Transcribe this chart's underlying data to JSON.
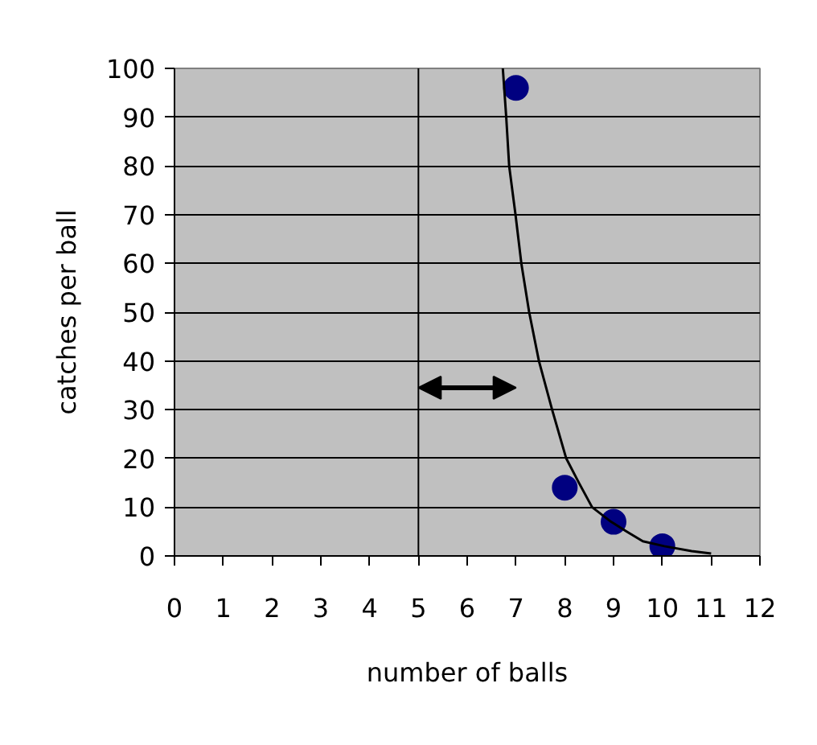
{
  "chart_data": {
    "type": "scatter",
    "xlabel": "number of balls",
    "ylabel": "catches per ball",
    "xlim": [
      0,
      12
    ],
    "ylim": [
      0,
      100
    ],
    "xticks": [
      0,
      1,
      2,
      3,
      4,
      5,
      6,
      7,
      8,
      9,
      10,
      11,
      12
    ],
    "yticks": [
      0,
      10,
      20,
      30,
      40,
      50,
      60,
      70,
      80,
      90,
      100
    ],
    "grid": "y",
    "marker": "circle",
    "series": [
      {
        "color": "#000080",
        "x": [
          7,
          8,
          9,
          10
        ],
        "values": [
          96,
          14,
          7,
          2
        ]
      },
      {
        "type": "line",
        "color": "#000000",
        "marker": "none",
        "line_style": "solid",
        "x": [
          6.73,
          6.8,
          6.86,
          6.99,
          7.11,
          7.27,
          7.47,
          7.74,
          8.03,
          8.29,
          8.56,
          8.95,
          9.27,
          9.6,
          10.04,
          10.6,
          11.0
        ],
        "values": [
          100,
          90,
          80,
          70,
          60,
          50,
          40,
          30,
          20,
          15,
          10,
          7,
          5,
          3,
          2,
          1,
          0.5
        ]
      }
    ],
    "ref_lines": [
      {
        "axis": "x",
        "value": 5,
        "color": "#000000"
      }
    ]
  }
}
